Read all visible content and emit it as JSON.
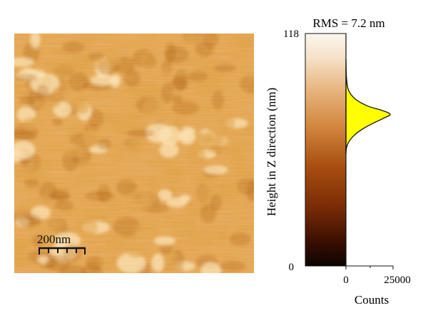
{
  "image_panel": {
    "scale_bar_label": "200nm",
    "colors": {
      "shadow": "#a85a10",
      "mid": "#e0a248",
      "high": "#fbe2b2",
      "base": "#e4a653"
    }
  },
  "chart_data": {
    "type": "histogram",
    "title": "RMS = 7.2 nm",
    "xlabel": "Counts",
    "ylabel": "Height in Z direction (nm)",
    "xlim": [
      0,
      25000
    ],
    "ylim": [
      0,
      118
    ],
    "x_tick_labels": [
      "0",
      "25000"
    ],
    "y_tick_labels": [
      "0",
      "118"
    ],
    "colorbar": {
      "range": [
        0,
        118
      ],
      "stops": [
        {
          "value": 0,
          "color": "#0b0400"
        },
        {
          "value": 12,
          "color": "#3a0e02"
        },
        {
          "value": 30,
          "color": "#7a2c06"
        },
        {
          "value": 50,
          "color": "#a84d10"
        },
        {
          "value": 70,
          "color": "#d1843c"
        },
        {
          "value": 90,
          "color": "#e8b680"
        },
        {
          "value": 105,
          "color": "#f5e0c6"
        },
        {
          "value": 118,
          "color": "#fbf6ee"
        }
      ]
    },
    "histogram": {
      "fill": "#ffff00",
      "points": [
        {
          "height": 57,
          "count": 0
        },
        {
          "height": 60,
          "count": 300
        },
        {
          "height": 63,
          "count": 1500
        },
        {
          "height": 66,
          "count": 4000
        },
        {
          "height": 69,
          "count": 8000
        },
        {
          "height": 72,
          "count": 13500
        },
        {
          "height": 75,
          "count": 20000
        },
        {
          "height": 77,
          "count": 23500
        },
        {
          "height": 79,
          "count": 19000
        },
        {
          "height": 81,
          "count": 12000
        },
        {
          "height": 84,
          "count": 6000
        },
        {
          "height": 87,
          "count": 2700
        },
        {
          "height": 90,
          "count": 1100
        },
        {
          "height": 94,
          "count": 400
        },
        {
          "height": 99,
          "count": 100
        },
        {
          "height": 105,
          "count": 0
        }
      ]
    }
  }
}
